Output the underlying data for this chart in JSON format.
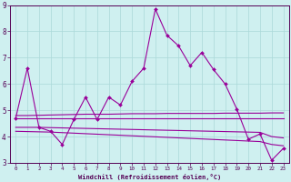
{
  "xlabel": "Windchill (Refroidissement éolien,°C)",
  "x": [
    0,
    1,
    2,
    3,
    4,
    5,
    6,
    7,
    8,
    9,
    10,
    11,
    12,
    13,
    14,
    15,
    16,
    17,
    18,
    19,
    20,
    21,
    22,
    23
  ],
  "main_y": [
    4.7,
    6.6,
    4.35,
    4.2,
    3.7,
    4.65,
    5.5,
    4.65,
    5.5,
    5.2,
    6.1,
    6.6,
    8.85,
    7.85,
    7.45,
    6.7,
    7.2,
    6.55,
    6.0,
    5.05,
    3.9,
    4.1,
    3.1,
    3.55
  ],
  "trend_lines": [
    [
      4.7,
      4.7,
      4.7,
      4.7,
      4.7,
      4.7,
      4.7,
      4.7,
      4.7,
      4.7,
      4.7,
      4.7,
      4.7,
      4.7,
      4.7,
      4.7,
      4.7,
      4.7,
      4.7,
      4.7,
      4.7,
      4.7,
      4.7,
      4.7
    ],
    [
      4.35,
      4.35,
      4.35,
      4.34,
      4.33,
      4.32,
      4.31,
      4.3,
      4.29,
      4.28,
      4.27,
      4.26,
      4.25,
      4.24,
      4.23,
      4.22,
      4.21,
      4.2,
      4.19,
      4.18,
      4.17,
      4.16,
      4.0,
      3.95
    ],
    [
      4.2,
      4.19,
      4.18,
      4.17,
      4.15,
      4.13,
      4.11,
      4.09,
      4.07,
      4.05,
      4.03,
      4.01,
      3.99,
      3.97,
      3.95,
      3.93,
      3.91,
      3.89,
      3.87,
      3.85,
      3.83,
      3.81,
      3.7,
      3.65
    ],
    [
      4.8,
      4.8,
      4.81,
      4.82,
      4.83,
      4.84,
      4.85,
      4.85,
      4.85,
      4.86,
      4.87,
      4.87,
      4.87,
      4.88,
      4.88,
      4.88,
      4.88,
      4.88,
      4.89,
      4.89,
      4.89,
      4.89,
      4.9,
      4.9
    ]
  ],
  "line_color": "#990099",
  "bg_color": "#cff0f0",
  "grid_color": "#aad8d8",
  "axis_color": "#550055",
  "tick_color": "#550055",
  "ylim": [
    3,
    9
  ],
  "xlim": [
    -0.5,
    23.5
  ],
  "yticks": [
    3,
    4,
    5,
    6,
    7,
    8,
    9
  ]
}
